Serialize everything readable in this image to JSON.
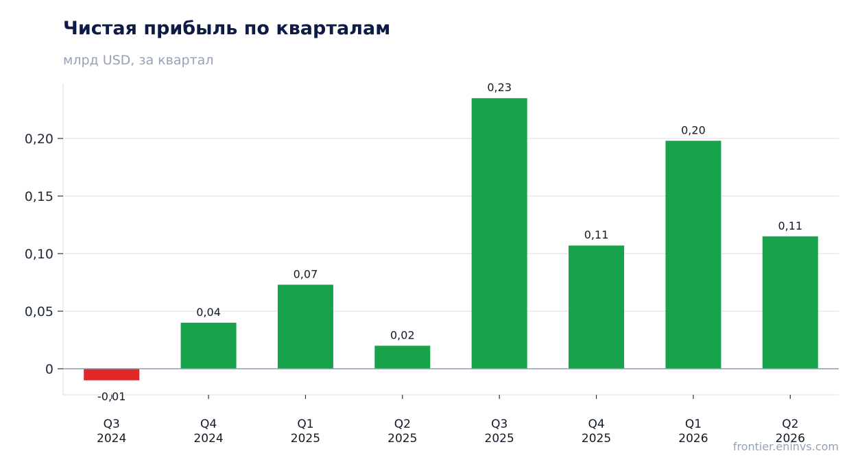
{
  "title": "Чистая прибыль по кварталам",
  "subtitle": "млрд USD, за квартал",
  "source": "frontier.eninvs.com",
  "colors": {
    "positive": "#18a34a",
    "negative": "#e02828",
    "grid": "#e5e8ef",
    "zero": "#8a9bb0"
  },
  "chart_data": {
    "type": "bar",
    "title": "Чистая прибыль по кварталам",
    "subtitle": "млрд USD, за квартал",
    "categories": [
      [
        "Q3",
        "2024"
      ],
      [
        "Q4",
        "2024"
      ],
      [
        "Q1",
        "2025"
      ],
      [
        "Q2",
        "2025"
      ],
      [
        "Q3",
        "2025"
      ],
      [
        "Q4",
        "2025"
      ],
      [
        "Q1",
        "2026"
      ],
      [
        "Q2",
        "2026"
      ]
    ],
    "values": [
      -0.01,
      0.04,
      0.073,
      0.02,
      0.235,
      0.107,
      0.198,
      0.115
    ],
    "data_labels": [
      "-0,01",
      "0,04",
      "0,07",
      "0,02",
      "0,23",
      "0,11",
      "0,20",
      "0,11"
    ],
    "yticks": [
      0,
      0.05,
      0.1,
      0.15,
      0.2
    ],
    "ytick_labels": [
      "0",
      "0,05",
      "0,10",
      "0,15",
      "0,20"
    ],
    "ylim": [
      -0.023,
      0.248
    ],
    "grid": true,
    "legend": "none"
  }
}
